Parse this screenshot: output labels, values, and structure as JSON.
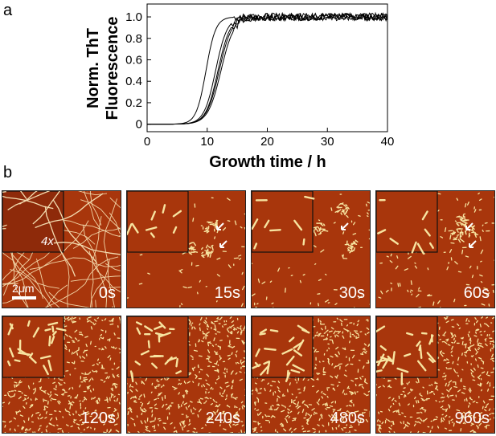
{
  "panel_a_label": "a",
  "panel_b_label": "b",
  "chart_data": {
    "type": "line",
    "title": "",
    "xlabel": "Growth time / h",
    "ylabel_line1": "Norm. ThT",
    "ylabel_line2": "Fluorescence",
    "xlim": [
      0,
      40
    ],
    "ylim": [
      -0.07,
      1.12
    ],
    "xticks": [
      0,
      10,
      20,
      30,
      40
    ],
    "yticks": [
      0,
      0.2,
      0.4,
      0.6,
      0.8,
      1.0
    ],
    "ytick_labels": [
      "0",
      "0.2",
      "0.4",
      "0.6",
      "0.8",
      "1.0"
    ],
    "grid": false,
    "series": [
      {
        "midpoint": 9.8,
        "slope": 0.62,
        "values": [
          [
            0,
            0
          ],
          [
            5,
            0.01
          ],
          [
            7,
            0.04
          ],
          [
            8,
            0.12
          ],
          [
            9,
            0.3
          ],
          [
            10,
            0.55
          ],
          [
            11,
            0.78
          ],
          [
            12,
            0.88
          ],
          [
            13,
            0.93
          ],
          [
            15,
            0.96
          ],
          [
            20,
            0.98
          ],
          [
            30,
            1.0
          ],
          [
            40,
            1.0
          ]
        ]
      },
      {
        "midpoint": 11.4,
        "slope": 0.52,
        "values": [
          [
            0,
            0
          ],
          [
            5,
            0.01
          ],
          [
            8,
            0.06
          ],
          [
            9,
            0.12
          ],
          [
            10,
            0.25
          ],
          [
            11,
            0.42
          ],
          [
            12,
            0.6
          ],
          [
            13,
            0.74
          ],
          [
            14,
            0.84
          ],
          [
            16,
            0.93
          ],
          [
            20,
            0.98
          ],
          [
            30,
            1.0
          ],
          [
            40,
            1.0
          ]
        ]
      },
      {
        "midpoint": 11.8,
        "slope": 0.5,
        "values": [
          [
            0,
            0
          ],
          [
            5,
            0.01
          ],
          [
            8,
            0.05
          ],
          [
            9,
            0.1
          ],
          [
            10,
            0.2
          ],
          [
            11,
            0.36
          ],
          [
            12,
            0.53
          ],
          [
            13,
            0.68
          ],
          [
            14,
            0.8
          ],
          [
            16,
            0.91
          ],
          [
            20,
            0.98
          ],
          [
            30,
            1.0
          ],
          [
            40,
            1.0
          ]
        ]
      },
      {
        "midpoint": 12.0,
        "slope": 0.48,
        "values": [
          [
            0,
            0
          ],
          [
            5,
            0.01
          ],
          [
            8,
            0.04
          ],
          [
            9,
            0.09
          ],
          [
            10,
            0.18
          ],
          [
            11,
            0.33
          ],
          [
            12,
            0.5
          ],
          [
            13,
            0.65
          ],
          [
            14,
            0.78
          ],
          [
            16,
            0.9
          ],
          [
            20,
            0.97
          ],
          [
            30,
            1.0
          ],
          [
            40,
            1.0
          ]
        ]
      },
      {
        "midpoint": 12.3,
        "slope": 0.46,
        "values": [
          [
            0,
            0
          ],
          [
            5,
            0.01
          ],
          [
            8,
            0.04
          ],
          [
            9,
            0.08
          ],
          [
            10,
            0.16
          ],
          [
            11,
            0.3
          ],
          [
            12,
            0.46
          ],
          [
            13,
            0.62
          ],
          [
            14,
            0.75
          ],
          [
            16,
            0.88
          ],
          [
            20,
            0.97
          ],
          [
            30,
            1.0
          ],
          [
            40,
            1.0
          ]
        ]
      }
    ]
  },
  "afm_panels": [
    {
      "label": "0s",
      "inset_mag": "4x",
      "scale_bar": "2μm",
      "density": "fibril",
      "arrows": 0
    },
    {
      "label": "15s",
      "density": "sparse",
      "arrows": 2
    },
    {
      "label": "30s",
      "density": "sparse",
      "arrows": 1
    },
    {
      "label": "60s",
      "density": "medium",
      "arrows": 2
    },
    {
      "label": "120s",
      "density": "dense"
    },
    {
      "label": "240s",
      "density": "dense"
    },
    {
      "label": "480s",
      "density": "dense"
    },
    {
      "label": "960s",
      "density": "dense"
    }
  ],
  "colors": {
    "afm_background": "#a8360c",
    "afm_particle": "#f7e4a0",
    "line": "#000000"
  }
}
